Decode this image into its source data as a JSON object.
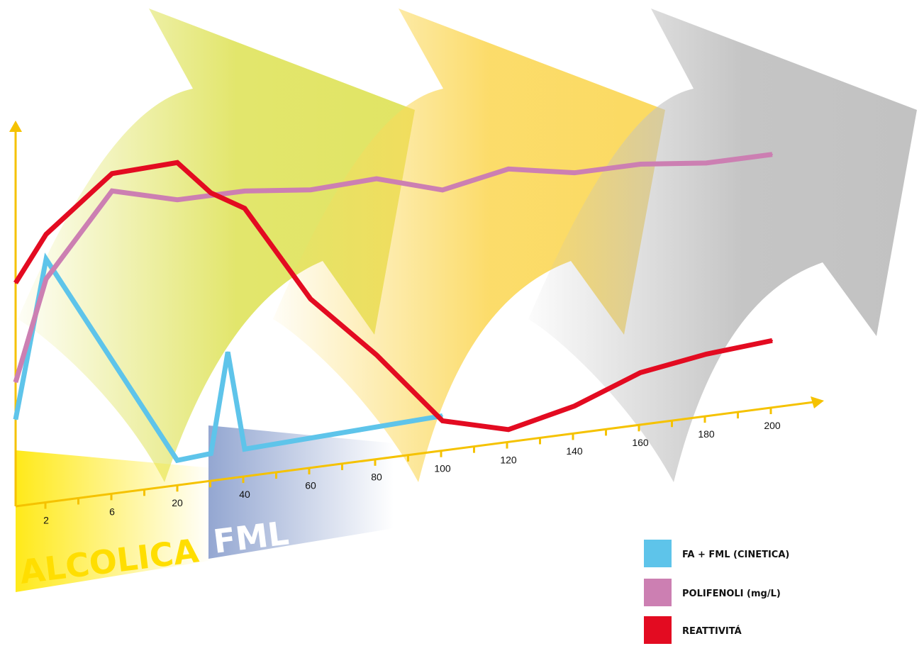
{
  "phases": {
    "alcolica": "ALCOLICA",
    "fml": "FML"
  },
  "colors": {
    "fa_fml": "#5ec4ea",
    "polifenoli": "#cc7fb2",
    "reattivita": "#e30b21",
    "axis": "#f5c200",
    "arrow1": "#dfe35c",
    "arrow2": "#fbd85a",
    "arrow3": "#c2c2c2"
  },
  "chart_data": {
    "type": "line",
    "x_ticks": [
      "2",
      "6",
      "20",
      "40",
      "60",
      "80",
      "100",
      "120",
      "140",
      "160",
      "180",
      "200"
    ],
    "grid": false,
    "legend_position": "bottom-right",
    "series": [
      {
        "name": "FA + FML (CINETICA)",
        "key": "fa_fml",
        "x": [
          0,
          2,
          20,
          30,
          35,
          40,
          100
        ],
        "y": [
          35,
          98,
          10,
          11,
          51,
          11,
          14
        ]
      },
      {
        "name": "POLIFENOLI (mg/L)",
        "key": "polifenoli",
        "x": [
          0,
          2,
          6,
          20,
          40,
          60,
          80,
          100,
          120,
          140,
          160,
          180,
          200
        ],
        "y": [
          50,
          90,
          122,
          115,
          115,
          112,
          113,
          105,
          110,
          105,
          105,
          102,
          102
        ]
      },
      {
        "name": "REATTIVITÁ",
        "key": "reattivita",
        "x": [
          0,
          2,
          6,
          20,
          30,
          40,
          60,
          80,
          100,
          120,
          140,
          160,
          180,
          200
        ],
        "y": [
          90,
          108,
          129,
          130,
          116,
          108,
          68,
          42,
          12,
          5,
          11,
          21,
          25,
          27
        ]
      }
    ]
  }
}
